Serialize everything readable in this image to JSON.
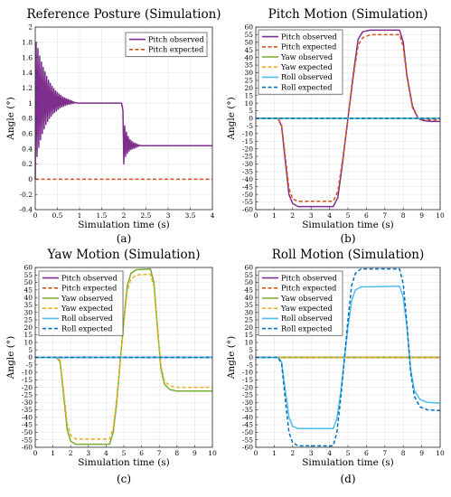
{
  "chart_data": [
    {
      "type": "line",
      "title": "Reference Posture (Simulation)",
      "xlabel": "Simulation time (s)",
      "ylabel": "Angle (°)",
      "caption": "(a)",
      "xlim": [
        0,
        4
      ],
      "ylim": [
        -0.4,
        2
      ],
      "xticks": [
        0,
        0.5,
        1,
        1.5,
        2,
        2.5,
        3,
        3.5,
        4
      ],
      "yticks": [
        -0.4,
        -0.2,
        0,
        0.2,
        0.4,
        0.6,
        0.8,
        1,
        1.2,
        1.4,
        1.6,
        1.8,
        2
      ],
      "grid": true,
      "legend_position": "top-right",
      "series": [
        {
          "name": "Pitch observed",
          "color": "#7e2f8e",
          "dash": "solid",
          "x": [
            0,
            0.02,
            0.04,
            0.06,
            0.08,
            0.1,
            0.12,
            0.14,
            0.16,
            0.18,
            0.2,
            0.22,
            0.24,
            0.26,
            0.28,
            0.3,
            0.32,
            0.34,
            0.36,
            0.38,
            0.4,
            0.42,
            0.44,
            0.46,
            0.48,
            0.5,
            0.52,
            0.54,
            0.56,
            0.58,
            0.6,
            0.62,
            0.64,
            0.66,
            0.68,
            0.7,
            0.72,
            0.74,
            0.76,
            0.78,
            0.8,
            0.82,
            0.84,
            0.86,
            0.88,
            0.9,
            0.95,
            1.0,
            1.95,
            1.98,
            2.0,
            2.02,
            2.04,
            2.06,
            2.08,
            2.1,
            2.12,
            2.14,
            2.16,
            2.18,
            2.2,
            2.22,
            2.24,
            2.26,
            2.28,
            2.3,
            2.32,
            2.34,
            2.36,
            2.4,
            2.5,
            3.0,
            4.0
          ],
          "values": [
            0,
            1.8,
            0.3,
            1.72,
            0.42,
            1.62,
            0.52,
            1.54,
            0.6,
            1.47,
            0.66,
            1.41,
            0.72,
            1.35,
            0.76,
            1.3,
            0.8,
            1.26,
            0.83,
            1.22,
            0.86,
            1.19,
            0.88,
            1.16,
            0.9,
            1.14,
            0.92,
            1.12,
            0.94,
            1.1,
            0.95,
            1.08,
            0.96,
            1.07,
            0.97,
            1.06,
            0.98,
            1.05,
            0.985,
            1.04,
            0.99,
            1.03,
            0.995,
            1.02,
            1.0,
            1.01,
            1.0,
            1.0,
            1.0,
            0.9,
            0.2,
            0.7,
            0.3,
            0.62,
            0.34,
            0.56,
            0.37,
            0.52,
            0.39,
            0.5,
            0.4,
            0.48,
            0.41,
            0.47,
            0.42,
            0.46,
            0.43,
            0.45,
            0.44,
            0.44,
            0.44,
            0.44,
            0.44
          ]
        },
        {
          "name": "Pitch expected",
          "color": "#d95319",
          "dash": "dashed",
          "x": [
            0,
            4
          ],
          "values": [
            0,
            0
          ]
        }
      ]
    },
    {
      "type": "line",
      "title": "Pitch Motion (Simulation)",
      "xlabel": "Simulation time (s)",
      "ylabel": "Angle (°)",
      "caption": "(b)",
      "xlim": [
        0,
        10
      ],
      "ylim": [
        -60,
        60
      ],
      "xticks": [
        0,
        1,
        2,
        3,
        4,
        5,
        6,
        7,
        8,
        9,
        10
      ],
      "yticks": [
        -60,
        -55,
        -50,
        -45,
        -40,
        -35,
        -30,
        -25,
        -20,
        -15,
        -10,
        -5,
        0,
        5,
        10,
        15,
        20,
        25,
        30,
        35,
        40,
        45,
        50,
        55,
        60
      ],
      "grid": true,
      "legend_position": "top-left",
      "series": [
        {
          "name": "Pitch observed",
          "color": "#7e2f8e",
          "dash": "solid",
          "x": [
            0,
            1.2,
            1.4,
            1.6,
            1.8,
            2.0,
            2.3,
            4.2,
            4.45,
            4.7,
            5.0,
            5.3,
            5.55,
            5.8,
            6.2,
            7.8,
            8.0,
            8.2,
            8.5,
            8.8,
            9.1,
            9.5,
            10
          ],
          "values": [
            0,
            0,
            -5,
            -28,
            -50,
            -56,
            -58,
            -58,
            -52,
            -30,
            0,
            30,
            52,
            57,
            58,
            58,
            50,
            28,
            8,
            0,
            -1.5,
            -2,
            -2
          ]
        },
        {
          "name": "Pitch expected",
          "color": "#d95319",
          "dash": "dashed",
          "x": [
            0,
            1.2,
            1.4,
            1.6,
            1.8,
            2.0,
            2.3,
            4.2,
            4.45,
            4.7,
            5.0,
            5.3,
            5.55,
            5.8,
            6.2,
            7.8,
            8.0,
            8.2,
            8.5,
            8.8,
            9.1,
            9.5,
            10
          ],
          "values": [
            0,
            0,
            -4,
            -25,
            -46,
            -53,
            -54.5,
            -54.5,
            -48,
            -28,
            0,
            28,
            48,
            53,
            55,
            55,
            47,
            27,
            7,
            0,
            -1,
            -1,
            -1
          ]
        },
        {
          "name": "Yaw observed",
          "color": "#77ac30",
          "dash": "solid",
          "x": [
            0,
            10
          ],
          "values": [
            0,
            0
          ]
        },
        {
          "name": "Yaw expected",
          "color": "#edb120",
          "dash": "dashed",
          "x": [
            0,
            10
          ],
          "values": [
            0,
            0
          ]
        },
        {
          "name": "Roll observed",
          "color": "#4dbeee",
          "dash": "solid",
          "x": [
            0,
            10
          ],
          "values": [
            0,
            0
          ]
        },
        {
          "name": "Roll expected",
          "color": "#0072bd",
          "dash": "dashed",
          "x": [
            0,
            10
          ],
          "values": [
            0,
            0
          ]
        }
      ]
    },
    {
      "type": "line",
      "title": "Yaw Motion (Simulation)",
      "xlabel": "Simulation time (s)",
      "ylabel": "Angle (°)",
      "caption": "(c)",
      "xlim": [
        0,
        10
      ],
      "ylim": [
        -60,
        60
      ],
      "xticks": [
        0,
        1,
        2,
        3,
        4,
        5,
        6,
        7,
        8,
        9,
        10
      ],
      "yticks": [
        -60,
        -55,
        -50,
        -45,
        -40,
        -35,
        -30,
        -25,
        -20,
        -15,
        -10,
        -5,
        0,
        5,
        10,
        15,
        20,
        25,
        30,
        35,
        40,
        45,
        50,
        55,
        60
      ],
      "grid": true,
      "legend_position": "top-left",
      "series": [
        {
          "name": "Pitch observed",
          "color": "#7e2f8e",
          "dash": "solid",
          "x": [
            0,
            10
          ],
          "values": [
            0,
            0
          ]
        },
        {
          "name": "Pitch expected",
          "color": "#d95319",
          "dash": "dashed",
          "x": [
            0,
            10
          ],
          "values": [
            0,
            0
          ]
        },
        {
          "name": "Yaw observed",
          "color": "#77ac30",
          "dash": "solid",
          "x": [
            0,
            1.2,
            1.4,
            1.6,
            1.8,
            2.0,
            2.3,
            4.2,
            4.4,
            4.6,
            4.8,
            5.0,
            5.2,
            5.4,
            5.7,
            6.5,
            6.7,
            6.9,
            7.1,
            7.3,
            7.6,
            8.0,
            10
          ],
          "values": [
            0,
            0,
            -3,
            -25,
            -48,
            -56,
            -58,
            -58,
            -50,
            -30,
            -2,
            25,
            48,
            56,
            58.5,
            59,
            50,
            20,
            -8,
            -18,
            -21.5,
            -22.5,
            -22.5
          ]
        },
        {
          "name": "Yaw expected",
          "color": "#edb120",
          "dash": "dashed",
          "x": [
            0,
            1.2,
            1.4,
            1.6,
            1.8,
            2.0,
            2.3,
            4.2,
            4.4,
            4.6,
            4.8,
            5.0,
            5.2,
            5.4,
            5.7,
            6.5,
            6.7,
            6.9,
            7.1,
            7.3,
            7.6,
            8.0,
            10
          ],
          "values": [
            0,
            0,
            -2,
            -22,
            -44,
            -52,
            -54.5,
            -54.5,
            -47,
            -28,
            -2,
            23,
            45,
            52,
            55,
            55.5,
            47,
            18,
            -6,
            -16,
            -19,
            -20,
            -20
          ]
        },
        {
          "name": "Roll observed",
          "color": "#4dbeee",
          "dash": "solid",
          "x": [
            0,
            10
          ],
          "values": [
            0,
            0
          ]
        },
        {
          "name": "Roll expected",
          "color": "#0072bd",
          "dash": "dashed",
          "x": [
            0,
            10
          ],
          "values": [
            0,
            0
          ]
        }
      ]
    },
    {
      "type": "line",
      "title": "Roll Motion (Simulation)",
      "xlabel": "Simulation time (s)",
      "ylabel": "Angle (°)",
      "caption": "(d)",
      "xlim": [
        0,
        10
      ],
      "ylim": [
        -60,
        60
      ],
      "xticks": [
        0,
        1,
        2,
        3,
        4,
        5,
        6,
        7,
        8,
        9,
        10
      ],
      "yticks": [
        -60,
        -55,
        -50,
        -45,
        -40,
        -35,
        -30,
        -25,
        -20,
        -15,
        -10,
        -5,
        0,
        5,
        10,
        15,
        20,
        25,
        30,
        35,
        40,
        45,
        50,
        55,
        60
      ],
      "grid": true,
      "legend_position": "top-left",
      "series": [
        {
          "name": "Pitch observed",
          "color": "#7e2f8e",
          "dash": "solid",
          "x": [
            0,
            10
          ],
          "values": [
            0,
            0
          ]
        },
        {
          "name": "Pitch expected",
          "color": "#d95319",
          "dash": "dashed",
          "x": [
            0,
            10
          ],
          "values": [
            0,
            0
          ]
        },
        {
          "name": "Yaw observed",
          "color": "#77ac30",
          "dash": "solid",
          "x": [
            0,
            10
          ],
          "values": [
            0,
            0
          ]
        },
        {
          "name": "Yaw expected",
          "color": "#edb120",
          "dash": "dashed",
          "x": [
            0,
            10
          ],
          "values": [
            0,
            0
          ]
        },
        {
          "name": "Roll observed",
          "color": "#4dbeee",
          "dash": "solid",
          "x": [
            0,
            1.2,
            1.4,
            1.6,
            1.8,
            2.0,
            2.3,
            4.2,
            4.4,
            4.6,
            4.8,
            5.0,
            5.2,
            5.4,
            5.7,
            7.8,
            8.0,
            8.2,
            8.4,
            8.6,
            8.9,
            9.3,
            10
          ],
          "values": [
            0,
            0,
            -3,
            -22,
            -40,
            -46,
            -47.5,
            -47.5,
            -41,
            -24,
            -2,
            20,
            38,
            45,
            47,
            47.5,
            40,
            20,
            -8,
            -22,
            -28,
            -30,
            -30.5
          ]
        },
        {
          "name": "Roll expected",
          "color": "#0072bd",
          "dash": "dashed",
          "x": [
            0,
            1.2,
            1.4,
            1.6,
            1.8,
            2.0,
            2.3,
            4.2,
            4.4,
            4.6,
            4.8,
            5.0,
            5.2,
            5.4,
            5.7,
            7.8,
            8.0,
            8.2,
            8.4,
            8.6,
            8.9,
            9.3,
            10
          ],
          "values": [
            0,
            0,
            -4,
            -28,
            -50,
            -57,
            -59,
            -59,
            -50,
            -28,
            -2,
            25,
            48,
            56,
            59,
            59,
            49,
            22,
            -10,
            -26,
            -33,
            -35,
            -35.5
          ]
        }
      ]
    }
  ]
}
